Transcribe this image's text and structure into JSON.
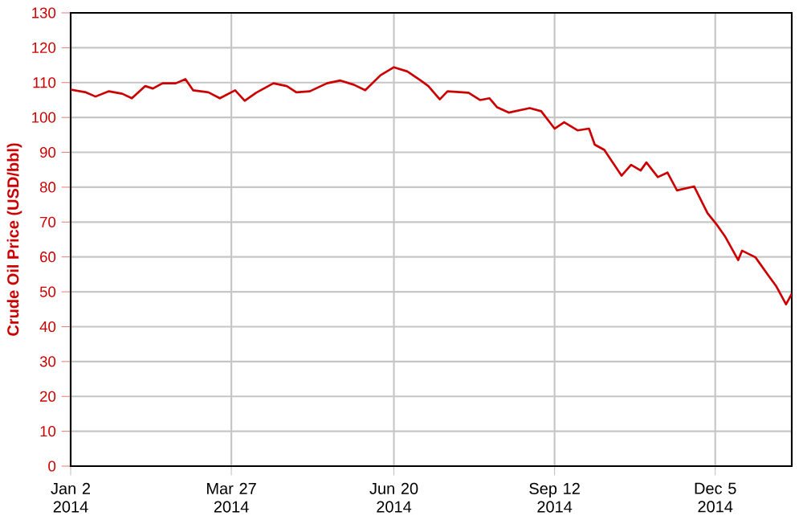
{
  "chart_data": {
    "type": "line",
    "ylabel": "Crude Oil Price (USD/bbl)",
    "x": [
      "2014-01-02",
      "2014-01-10",
      "2014-01-15",
      "2014-01-22",
      "2014-01-29",
      "2014-02-03",
      "2014-02-10",
      "2014-02-14",
      "2014-02-19",
      "2014-02-26",
      "2014-03-03",
      "2014-03-07",
      "2014-03-15",
      "2014-03-21",
      "2014-03-29",
      "2014-04-03",
      "2014-04-09",
      "2014-04-18",
      "2014-04-25",
      "2014-04-30",
      "2014-05-07",
      "2014-05-16",
      "2014-05-23",
      "2014-05-30",
      "2014-06-05",
      "2014-06-13",
      "2014-06-20",
      "2014-06-27",
      "2014-07-04",
      "2014-07-08",
      "2014-07-14",
      "2014-07-18",
      "2014-07-29",
      "2014-08-04",
      "2014-08-09",
      "2014-08-13",
      "2014-08-19",
      "2014-08-30",
      "2014-09-05",
      "2014-09-12",
      "2014-09-17",
      "2014-09-24",
      "2014-09-30",
      "2014-10-03",
      "2014-10-08",
      "2014-10-17",
      "2014-10-22",
      "2014-10-27",
      "2014-10-30",
      "2014-11-05",
      "2014-11-10",
      "2014-11-15",
      "2014-11-24",
      "2014-12-01",
      "2014-12-06",
      "2014-12-10",
      "2014-12-17",
      "2014-12-19",
      "2014-12-26",
      "2015-01-02",
      "2015-01-06",
      "2015-01-11",
      "2015-01-14"
    ],
    "series": [
      {
        "color": "#cc0000",
        "values": [
          108,
          107.2,
          106,
          107.5,
          106.8,
          105.5,
          109,
          108.3,
          109.8,
          109.8,
          111,
          107.8,
          107.2,
          105.5,
          107.8,
          104.8,
          107.1,
          109.8,
          109,
          107.2,
          107.5,
          109.8,
          110.6,
          109.4,
          107.8,
          112.1,
          114.4,
          113.2,
          110.6,
          109,
          105.2,
          107.5,
          107.1,
          105,
          105.5,
          102.9,
          101.4,
          102.7,
          101.8,
          96.8,
          98.6,
          96.3,
          96.8,
          92.2,
          90.7,
          83.3,
          86.4,
          84.8,
          87.1,
          82.9,
          84.2,
          79.1,
          80.2,
          72.5,
          69.1,
          66,
          59.1,
          61.8,
          59.9,
          54.5,
          51.5,
          46.4,
          49.4
        ]
      }
    ],
    "xlim": [
      "2014-01-02",
      "2015-01-14"
    ],
    "xticks": [
      {
        "value": "2014-01-02",
        "label": "Jan 2 2014"
      },
      {
        "value": "2014-03-27",
        "label": "Mar 27 2014"
      },
      {
        "value": "2014-06-20",
        "label": "Jun 20 2014"
      },
      {
        "value": "2014-09-12",
        "label": "Sep 12 2014"
      },
      {
        "value": "2014-12-05",
        "label": "Dec 5 2014"
      }
    ],
    "ylim": [
      0,
      130
    ],
    "yticks": [
      0,
      10,
      20,
      30,
      40,
      50,
      60,
      70,
      80,
      90,
      100,
      110,
      120,
      130
    ],
    "grid": true,
    "line_style": "solid"
  }
}
